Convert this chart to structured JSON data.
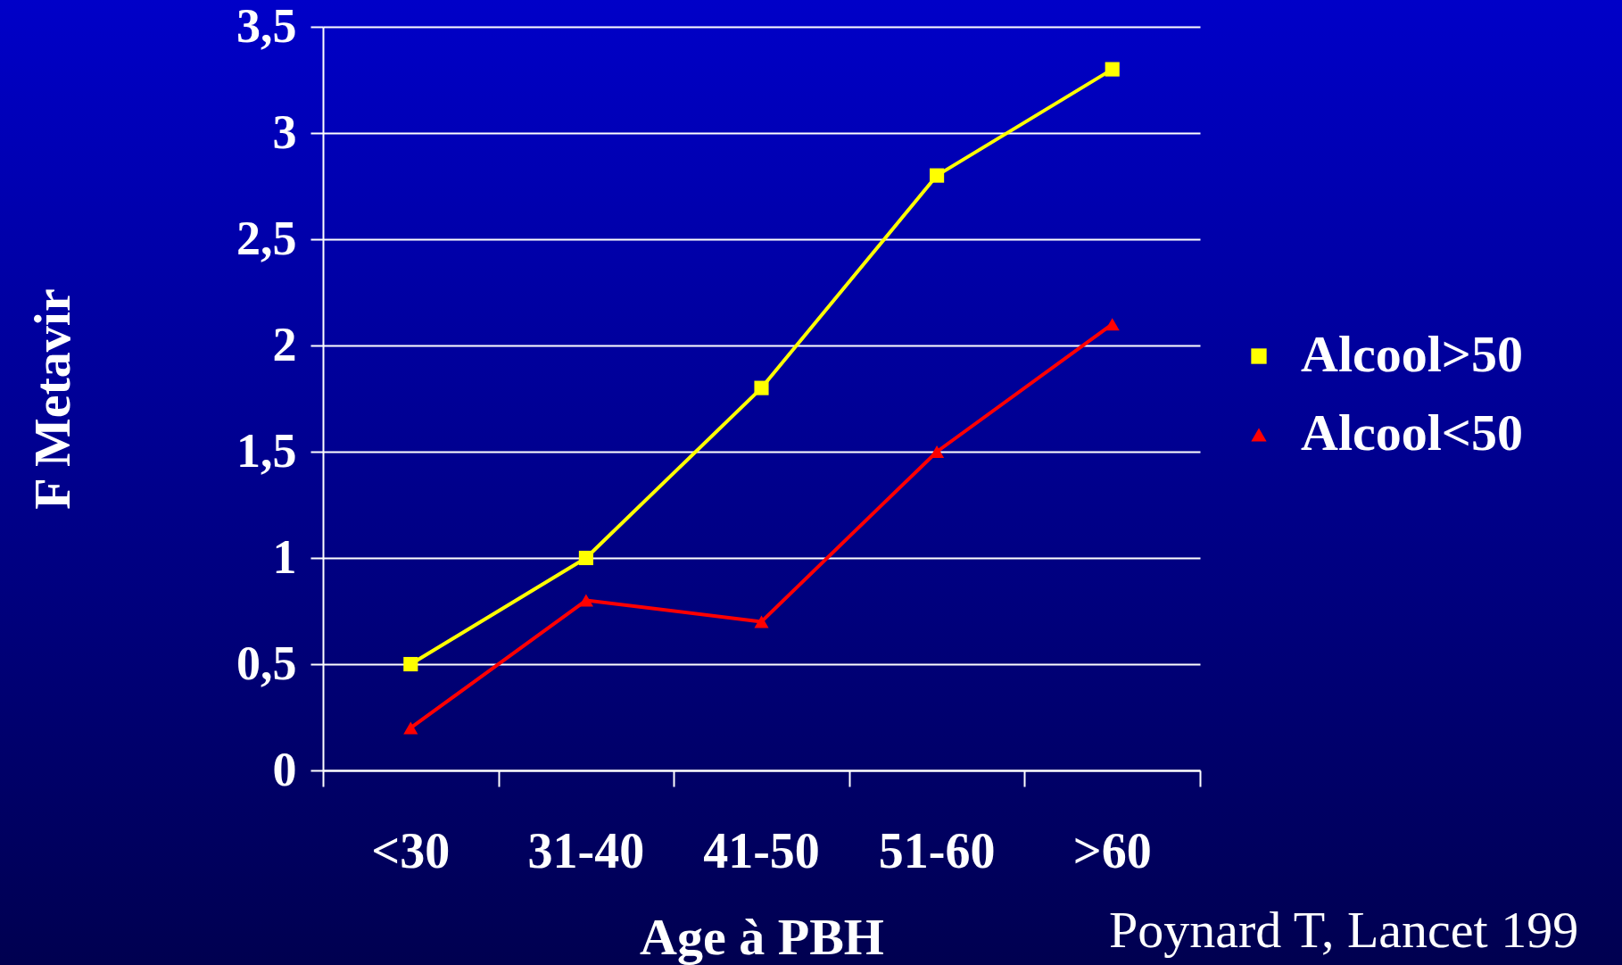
{
  "chart_data": {
    "type": "line",
    "ylabel": "F Metavir",
    "xlabel": "Age à PBH",
    "categories": [
      "<30",
      "31-40",
      "41-50",
      "51-60",
      ">60"
    ],
    "series": [
      {
        "name": "Alcool>50",
        "color": "#ffff00",
        "marker": "square",
        "values": [
          0.5,
          1,
          1.8,
          2.8,
          3.3
        ]
      },
      {
        "name": "Alcool<50",
        "color": "#ff0000",
        "marker": "triangle",
        "values": [
          0.2,
          0.8,
          0.7,
          1.5,
          2.1
        ]
      }
    ],
    "ylim": [
      0,
      3.5
    ],
    "yticks": [
      0,
      {
        "value": 0.5,
        "label": "0,5"
      },
      1,
      {
        "value": 1.5,
        "label": "1,5"
      },
      2,
      {
        "value": 2.5,
        "label": "2,5"
      },
      3,
      {
        "value": 3.5,
        "label": "3,5"
      }
    ],
    "grid": "y",
    "legend": "right",
    "line_style": "solid",
    "annotations": [
      "Poynard T, Lancet 199"
    ]
  }
}
